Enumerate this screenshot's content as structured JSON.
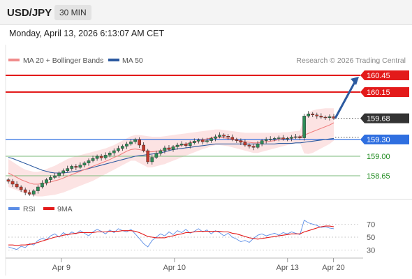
{
  "header": {
    "symbol": "USD/JPY",
    "timeframe": "30 MIN",
    "datetime": "Monday, April 13, 2026 6:13:07 AM CET"
  },
  "chart_data": [
    {
      "type": "line",
      "name": "price",
      "legend": [
        {
          "label": "MA 20 + Bollinger Bands",
          "color": "#f08c8c"
        },
        {
          "label": "MA 50",
          "color": "#2c5aa0"
        }
      ],
      "credit": "Research © 2026 Trading Central",
      "ylim": [
        158.3,
        160.55
      ],
      "xlim": [
        0,
        100
      ],
      "x_ticks": [
        {
          "x": 15,
          "label": "Apr 9"
        },
        {
          "x": 47,
          "label": "Apr 10"
        },
        {
          "x": 79,
          "label": "Apr 13"
        },
        {
          "x": 92,
          "label": "Apr 20"
        }
      ],
      "levels": [
        {
          "value": 160.45,
          "label": "160.45",
          "color": "#e31a1a",
          "kind": "resistance"
        },
        {
          "value": 160.15,
          "label": "160.15",
          "color": "#e31a1a",
          "kind": "resistance"
        },
        {
          "value": 159.68,
          "label": "159.68",
          "color": "#333333",
          "kind": "last"
        },
        {
          "value": 159.3,
          "label": "159.30",
          "color": "#2f6fe0",
          "kind": "pivot"
        },
        {
          "value": 159.0,
          "label": "159.00",
          "color": "#1e8a1e",
          "kind": "support"
        },
        {
          "value": 158.65,
          "label": "158.65",
          "color": "#1e8a1e",
          "kind": "support"
        }
      ],
      "close": [
        158.55,
        158.5,
        158.45,
        158.4,
        158.35,
        158.32,
        158.38,
        158.45,
        158.52,
        158.58,
        158.62,
        158.65,
        158.7,
        158.74,
        158.78,
        158.82,
        158.8,
        158.84,
        158.88,
        158.92,
        158.96,
        159.0,
        158.97,
        159.02,
        159.06,
        159.1,
        159.14,
        159.18,
        159.22,
        159.26,
        159.3,
        159.2,
        159.1,
        158.9,
        158.98,
        159.05,
        159.1,
        159.15,
        159.12,
        159.17,
        159.2,
        159.22,
        159.19,
        159.24,
        159.27,
        159.29,
        159.26,
        159.28,
        159.32,
        159.35,
        159.38,
        159.36,
        159.34,
        159.3,
        159.28,
        159.25,
        159.2,
        159.18,
        159.16,
        159.22,
        159.28,
        159.3,
        159.31,
        159.32,
        159.33,
        159.31,
        159.32,
        159.34,
        159.35,
        159.33,
        159.72,
        159.76,
        159.74,
        159.72,
        159.7,
        159.69,
        159.71,
        159.68
      ],
      "ma20": [
        158.7,
        158.66,
        158.62,
        158.58,
        158.55,
        158.52,
        158.5,
        158.5,
        158.51,
        158.52,
        158.54,
        158.56,
        158.58,
        158.61,
        158.64,
        158.67,
        158.7,
        158.73,
        158.76,
        158.79,
        158.82,
        158.85,
        158.88,
        158.91,
        158.94,
        158.98,
        159.01,
        159.05,
        159.09,
        159.12,
        159.13,
        159.12,
        159.1,
        159.08,
        159.08,
        159.09,
        159.1,
        159.12,
        159.14,
        159.16,
        159.18,
        159.2,
        159.22,
        159.24,
        159.26,
        159.28,
        159.3,
        159.31,
        159.33,
        159.34,
        159.34,
        159.33,
        159.32,
        159.3,
        159.29,
        159.27,
        159.26,
        159.25,
        159.24,
        159.24,
        159.25,
        159.26,
        159.27,
        159.28,
        159.3,
        159.31,
        159.32,
        159.33,
        159.34,
        159.35,
        159.38,
        159.41,
        159.44,
        159.47,
        159.5,
        159.53,
        159.56,
        159.6
      ],
      "bb_upper": [
        158.95,
        158.9,
        158.85,
        158.8,
        158.76,
        158.74,
        158.72,
        158.72,
        158.74,
        158.77,
        158.8,
        158.83,
        158.87,
        158.91,
        158.95,
        158.98,
        159.0,
        159.02,
        159.04,
        159.06,
        159.08,
        159.1,
        159.12,
        159.14,
        159.17,
        159.2,
        159.24,
        159.28,
        159.32,
        159.36,
        159.38,
        159.38,
        159.37,
        159.36,
        159.35,
        159.35,
        159.35,
        159.36,
        159.37,
        159.38,
        159.39,
        159.4,
        159.41,
        159.42,
        159.43,
        159.44,
        159.45,
        159.46,
        159.47,
        159.48,
        159.48,
        159.47,
        159.46,
        159.45,
        159.44,
        159.43,
        159.42,
        159.42,
        159.42,
        159.42,
        159.42,
        159.42,
        159.42,
        159.42,
        159.42,
        159.43,
        159.43,
        159.44,
        159.45,
        159.46,
        159.7,
        159.78,
        159.82,
        159.84,
        159.85,
        159.86,
        159.86,
        159.86
      ],
      "bb_lower": [
        158.45,
        158.42,
        158.39,
        158.36,
        158.34,
        158.31,
        158.29,
        158.28,
        158.28,
        158.29,
        158.3,
        158.31,
        158.33,
        158.35,
        158.38,
        158.41,
        158.44,
        158.47,
        158.5,
        158.53,
        158.56,
        158.6,
        158.64,
        158.68,
        158.72,
        158.76,
        158.8,
        158.84,
        158.88,
        158.92,
        158.92,
        158.88,
        158.84,
        158.8,
        158.8,
        158.82,
        158.84,
        158.86,
        158.89,
        158.92,
        158.95,
        158.98,
        159.01,
        159.04,
        159.07,
        159.1,
        159.13,
        159.15,
        159.18,
        159.2,
        159.2,
        159.19,
        159.18,
        159.16,
        159.14,
        159.12,
        159.1,
        159.08,
        159.06,
        159.06,
        159.08,
        159.1,
        159.12,
        159.14,
        159.16,
        159.18,
        159.2,
        159.22,
        159.23,
        159.24,
        159.05,
        159.04,
        159.06,
        159.1,
        159.14,
        159.18,
        159.22,
        159.28
      ],
      "ma50": [
        158.98,
        158.96,
        158.93,
        158.9,
        158.87,
        158.84,
        158.81,
        158.78,
        158.75,
        158.73,
        158.71,
        158.7,
        158.7,
        158.7,
        158.71,
        158.72,
        158.73,
        158.74,
        158.76,
        158.78,
        158.8,
        158.82,
        158.84,
        158.86,
        158.88,
        158.9,
        158.92,
        158.94,
        158.96,
        158.98,
        159.0,
        159.01,
        159.02,
        159.03,
        159.04,
        159.05,
        159.06,
        159.08,
        159.1,
        159.12,
        159.13,
        159.14,
        159.15,
        159.16,
        159.17,
        159.18,
        159.19,
        159.2,
        159.21,
        159.22,
        159.22,
        159.22,
        159.22,
        159.22,
        159.22,
        159.22,
        159.22,
        159.22,
        159.22,
        159.22,
        159.22,
        159.22,
        159.22,
        159.22,
        159.23,
        159.23,
        159.23,
        159.23,
        159.24,
        159.24,
        159.25,
        159.26,
        159.27,
        159.28,
        159.29,
        159.3,
        159.31,
        159.32
      ],
      "projection": {
        "from": 159.68,
        "to": 160.45
      }
    },
    {
      "type": "line",
      "name": "rsi",
      "legend": [
        {
          "label": "RSI",
          "color": "#5b8de6"
        },
        {
          "label": "9MA",
          "color": "#e31a1a"
        }
      ],
      "ylim": [
        20,
        80
      ],
      "y_ticks": [
        70,
        50,
        30
      ],
      "rsi": [
        35,
        33,
        31,
        36,
        34,
        40,
        38,
        45,
        48,
        46,
        52,
        55,
        50,
        57,
        53,
        58,
        55,
        60,
        56,
        52,
        58,
        62,
        59,
        55,
        61,
        57,
        63,
        60,
        58,
        62,
        55,
        48,
        40,
        35,
        45,
        50,
        55,
        52,
        58,
        54,
        60,
        57,
        62,
        56,
        59,
        63,
        58,
        61,
        55,
        60,
        57,
        52,
        56,
        50,
        47,
        43,
        45,
        42,
        48,
        53,
        55,
        52,
        54,
        56,
        53,
        57,
        55,
        58,
        56,
        54,
        76,
        72,
        70,
        68,
        65,
        66,
        64,
        63
      ],
      "ma9": [
        38,
        38,
        37,
        38,
        38,
        39,
        40,
        42,
        44,
        46,
        48,
        50,
        51,
        53,
        54,
        55,
        56,
        57,
        57,
        57,
        57,
        58,
        58,
        58,
        59,
        59,
        59,
        60,
        60,
        60,
        59,
        57,
        54,
        51,
        50,
        49,
        49,
        49,
        51,
        52,
        54,
        55,
        57,
        57,
        58,
        59,
        59,
        59,
        59,
        59,
        59,
        58,
        58,
        56,
        55,
        53,
        51,
        49,
        48,
        47,
        48,
        49,
        50,
        51,
        52,
        53,
        54,
        55,
        55,
        55,
        58,
        60,
        62,
        64,
        66,
        67,
        67,
        66
      ]
    }
  ]
}
